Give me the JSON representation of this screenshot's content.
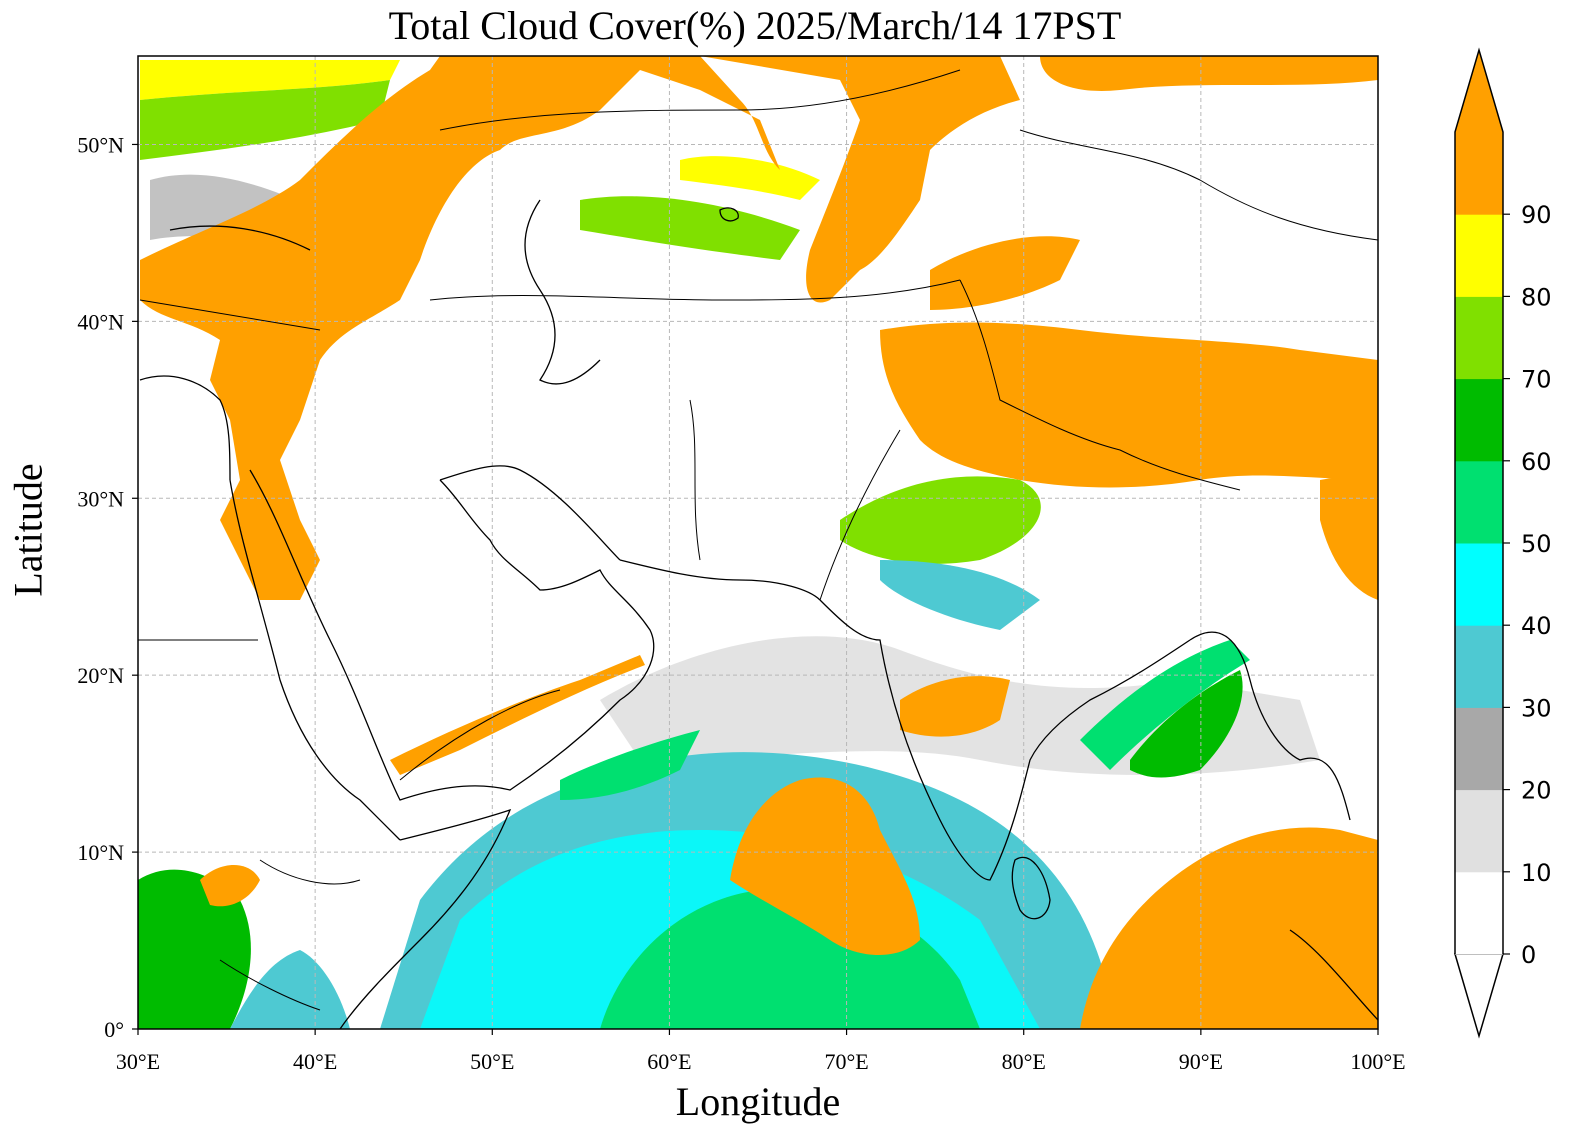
{
  "title": "Total Cloud Cover(%)  2025/March/14 17PST",
  "xlabel": "Longitude",
  "ylabel": "Latitude",
  "map": {
    "lon_range": [
      30,
      100
    ],
    "lat_range": [
      0,
      55
    ],
    "lon_ticks": [
      "30°E",
      "40°E",
      "50°E",
      "60°E",
      "70°E",
      "80°E",
      "90°E",
      "100°E"
    ],
    "lat_ticks": [
      "0°",
      "10°N",
      "20°N",
      "30°N",
      "40°N",
      "50°N"
    ],
    "gridlines": true
  },
  "colorbar": {
    "levels": [
      "0",
      "10",
      "20",
      "30",
      "40",
      "50",
      "60",
      "70",
      "80",
      "90"
    ],
    "colors": [
      "#ffffff",
      "#e0e0e0",
      "#a8a8a8",
      "#4ec9d2",
      "#00ffff",
      "#00e070",
      "#00bb00",
      "#80e000",
      "#ffff00",
      "#ffa000"
    ],
    "extend": "both"
  },
  "legend_colors": {
    "clear": "#ffffff",
    "overcast": "#ffa000",
    "border": "#000000"
  }
}
